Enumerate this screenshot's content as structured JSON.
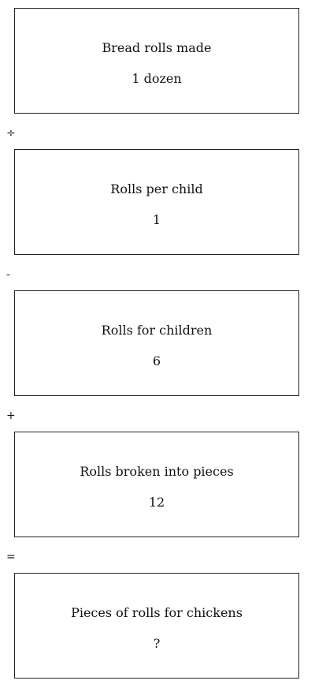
{
  "steps": [
    {
      "label": "Bread rolls made",
      "value": "1 dozen"
    },
    {
      "label": "Rolls per child",
      "value": "1"
    },
    {
      "label": "Rolls for children",
      "value": "6"
    },
    {
      "label": "Rolls broken into pieces",
      "value": "12"
    },
    {
      "label": "Pieces of rolls for chickens",
      "value": "?"
    }
  ],
  "operators": [
    "÷",
    "-",
    "+",
    "="
  ]
}
